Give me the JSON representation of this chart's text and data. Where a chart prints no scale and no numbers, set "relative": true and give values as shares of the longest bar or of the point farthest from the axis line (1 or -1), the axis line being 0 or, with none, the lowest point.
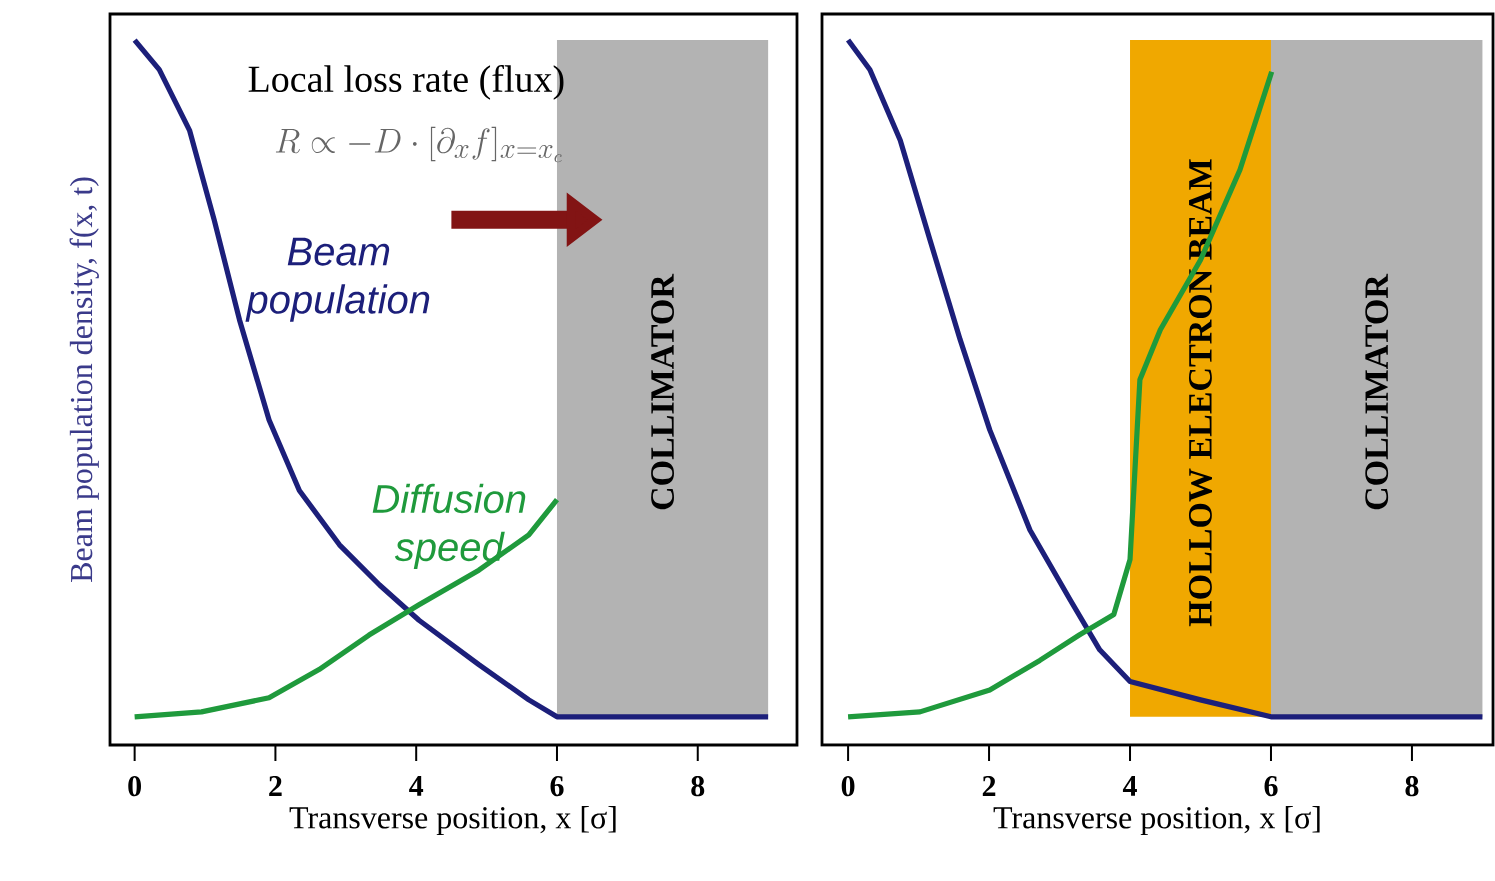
{
  "chart_data": [
    {
      "type": "line",
      "relative": true,
      "xlabel": "Transverse position, x [σ]",
      "ylabel": "Beam population density, f(x, t)",
      "xlim": [
        -0.35,
        9.41
      ],
      "xticks": [
        0,
        2,
        4,
        6,
        8
      ],
      "annotations": [
        "Local loss rate (flux)",
        "R \\propto -D\\cdot[\\partial_x f]_{x=x_c}"
      ],
      "bands": [
        {
          "axis": "x",
          "from": 6,
          "to": 9,
          "label": "COLLIMATOR",
          "color": "#b3b3b3"
        }
      ],
      "series": [
        {
          "name": "Beam population",
          "color": "#1c1f7a",
          "x": [
            0,
            0.35,
            0.78,
            1.13,
            1.49,
            1.91,
            2.34,
            2.91,
            3.48,
            4.04,
            4.89,
            5.6,
            6.0,
            9.0
          ],
          "values": [
            1.0,
            0.958,
            0.872,
            0.745,
            0.603,
            0.461,
            0.361,
            0.284,
            0.227,
            0.177,
            0.114,
            0.064,
            0.04,
            0.04
          ]
        },
        {
          "name": "Diffusion speed",
          "color": "#1f9a3c",
          "x": [
            0,
            0.95,
            1.91,
            2.62,
            3.33,
            4.04,
            4.89,
            5.6,
            6.0
          ],
          "values": [
            0.04,
            0.047,
            0.067,
            0.107,
            0.156,
            0.199,
            0.248,
            0.298,
            0.348
          ]
        }
      ]
    },
    {
      "type": "line",
      "relative": true,
      "xlabel": "Transverse position, x [σ]",
      "xlim": [
        -0.37,
        9.15
      ],
      "xticks": [
        0,
        2,
        4,
        6,
        8
      ],
      "bands": [
        {
          "axis": "x",
          "from": 4,
          "to": 6,
          "label": "HOLLOW ELECTRON BEAM",
          "color": "#f0a800"
        },
        {
          "axis": "x",
          "from": 6,
          "to": 9,
          "label": "COLLIMATOR",
          "color": "#b3b3b3"
        }
      ],
      "series": [
        {
          "color": "#1c1f7a",
          "x": [
            0,
            0.31,
            0.74,
            1.16,
            1.59,
            2.01,
            2.58,
            3.15,
            3.57,
            4.0,
            5.0,
            6.0,
            9.0
          ],
          "values": [
            1.0,
            0.958,
            0.858,
            0.717,
            0.575,
            0.447,
            0.305,
            0.206,
            0.135,
            0.09,
            0.064,
            0.04,
            0.04
          ]
        },
        {
          "color": "#1f9a3c",
          "x": [
            0,
            1.02,
            2.01,
            2.72,
            3.28,
            3.77,
            4.0,
            4.14,
            4.43,
            5.0,
            5.56,
            6.01
          ],
          "values": [
            0.04,
            0.047,
            0.078,
            0.12,
            0.156,
            0.185,
            0.263,
            0.518,
            0.589,
            0.688,
            0.816,
            0.955
          ]
        }
      ]
    }
  ]
}
